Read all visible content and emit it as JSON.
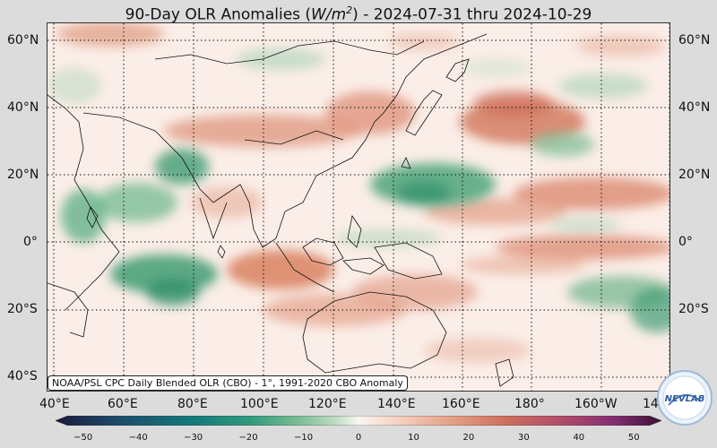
{
  "title_prefix": "90-Day OLR Anomalies (",
  "title_units": "W/m",
  "title_exp": "2",
  "title_suffix": ") - 2024-07-31 thru 2024-10-29",
  "source_label": "NOAA/PSL CPC Daily Blended OLR (CBO) - 1°, 1991-2020 CBO Anomaly",
  "lat_labels_left": [
    "60°N",
    "40°N",
    "20°N",
    "0°",
    "20°S",
    "40°S"
  ],
  "lat_labels_right": [
    "60°N",
    "40°N",
    "20°N",
    "0°",
    "20°S"
  ],
  "lon_labels": [
    "40°E",
    "60°E",
    "80°E",
    "100°E",
    "120°E",
    "140°E",
    "160°E",
    "180°",
    "160°W",
    "14"
  ],
  "colorbar": {
    "ticks": [
      "−50",
      "−40",
      "−30",
      "−20",
      "−10",
      "0",
      "10",
      "20",
      "30",
      "40",
      "50"
    ],
    "min": -55,
    "max": 55,
    "negative_colors": [
      "#1a1a3a",
      "#1d4a6a",
      "#14777a",
      "#2f9a7c",
      "#7bbd93",
      "#c8e0cc"
    ],
    "positive_colors": [
      "#f6d9cc",
      "#e8a88f",
      "#cf7060",
      "#b04a6a",
      "#842e73",
      "#3a1034"
    ]
  },
  "map": {
    "background": "#fbeee8",
    "negative_anomaly_color": "#3a9a70",
    "positive_anomaly_color": "#d77a5c"
  },
  "logo_text": "NEVLAB"
}
